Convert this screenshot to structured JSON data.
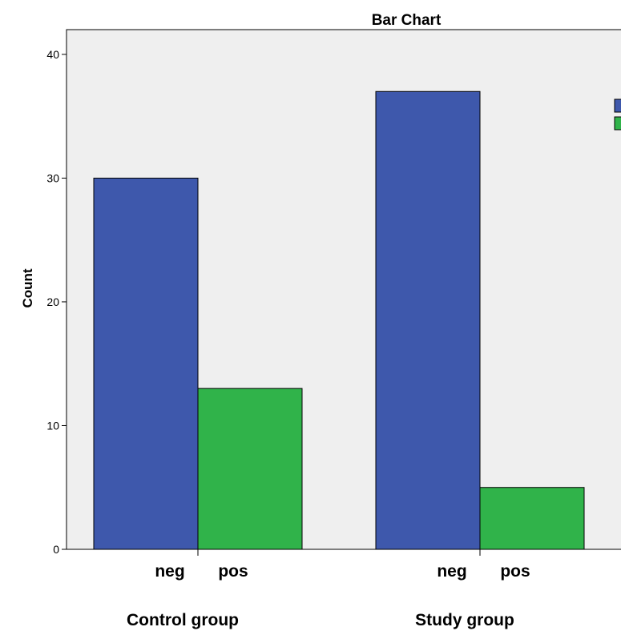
{
  "chart_data": {
    "type": "bar",
    "title": "Bar Chart",
    "ylabel": "Count",
    "xlabel": "",
    "ylim": [
      0,
      42
    ],
    "yticks": [
      0,
      10,
      20,
      30,
      40
    ],
    "groups": [
      "Control group",
      "Study group"
    ],
    "categories": [
      "neg",
      "pos"
    ],
    "series": [
      {
        "category": "neg",
        "color": "#3e58ac",
        "values": [
          30,
          37
        ]
      },
      {
        "category": "pos",
        "color": "#30b34a",
        "values": [
          13,
          5
        ]
      }
    ],
    "legend_placement": "right",
    "plot_background": "#efefef",
    "grid": false
  }
}
